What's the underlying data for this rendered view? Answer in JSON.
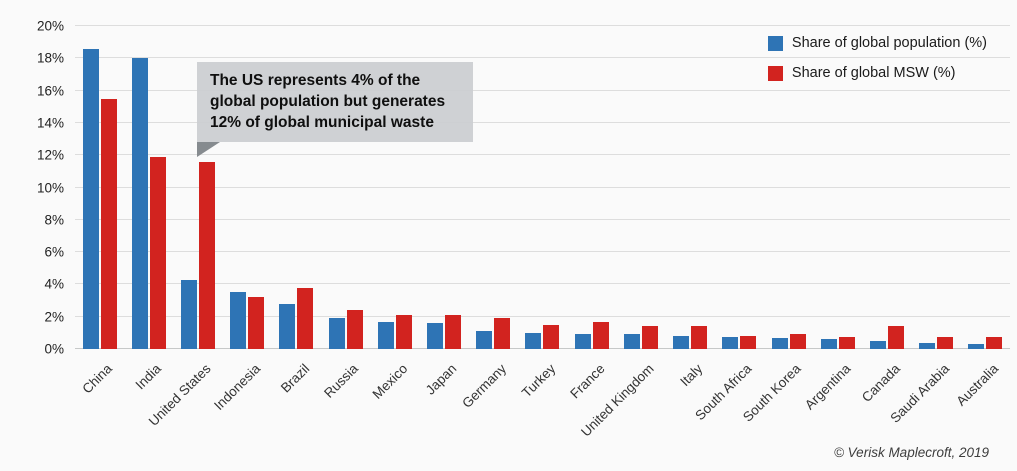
{
  "page": {
    "copyright": "© Verisk Maplecroft, 2019",
    "background_color": "#fafafa",
    "gridline_color": "#dddddd"
  },
  "legend": [
    {
      "label": "Share of global population (%)",
      "color": "#2e74b5"
    },
    {
      "label": "Share of global MSW (%)",
      "color": "#d2231f"
    }
  ],
  "annotation": {
    "text": "The US represents 4% of the global population but generates 12% of global municipal waste",
    "box_color": "#cbcdd0",
    "arrow_color": "#868b8f"
  },
  "chart_data": {
    "type": "bar",
    "categories": [
      "China",
      "India",
      "United States",
      "Indonesia",
      "Brazil",
      "Russia",
      "Mexico",
      "Japan",
      "Germany",
      "Turkey",
      "France",
      "United Kingdom",
      "Italy",
      "South Africa",
      "South Korea",
      "Argentina",
      "Canada",
      "Saudi Arabia",
      "Australia"
    ],
    "series": [
      {
        "name": "Share of global population (%)",
        "color": "#2e74b5",
        "values": [
          18.6,
          18.0,
          4.3,
          3.5,
          2.8,
          1.9,
          1.7,
          1.6,
          1.1,
          1.0,
          0.9,
          0.9,
          0.8,
          0.75,
          0.7,
          0.6,
          0.5,
          0.4,
          0.3
        ]
      },
      {
        "name": "Share of global MSW (%)",
        "color": "#d2231f",
        "values": [
          15.5,
          11.9,
          11.6,
          3.2,
          3.8,
          2.4,
          2.1,
          2.1,
          1.9,
          1.5,
          1.7,
          1.45,
          1.45,
          0.8,
          0.95,
          0.75,
          1.4,
          0.75,
          0.75
        ]
      }
    ],
    "title": "",
    "xlabel": "",
    "ylabel": "",
    "ylim": [
      0,
      20
    ],
    "ytick_step": 2,
    "yticks": [
      "0%",
      "2%",
      "4%",
      "6%",
      "8%",
      "10%",
      "12%",
      "14%",
      "16%",
      "18%",
      "20%"
    ],
    "grid": true,
    "legend_position": "top-right"
  }
}
